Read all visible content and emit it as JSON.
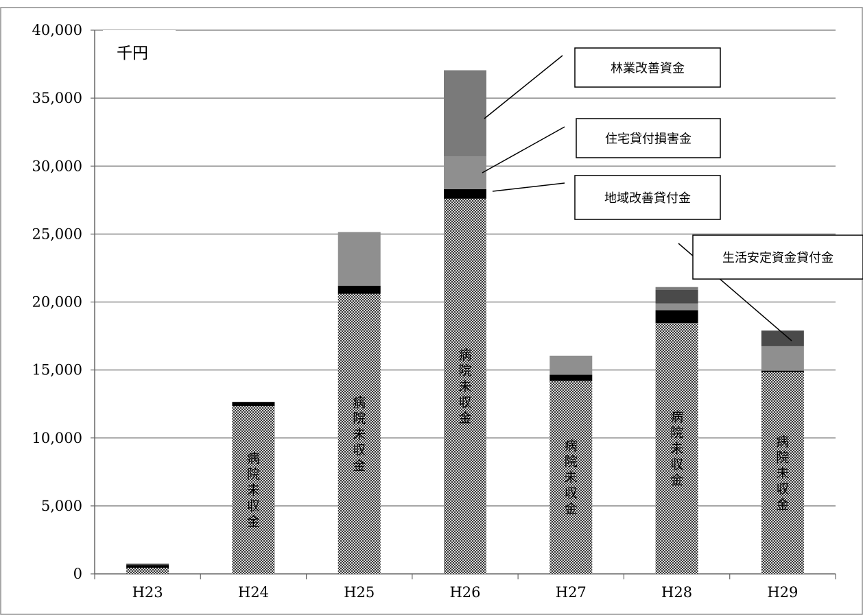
{
  "chart_data": {
    "type": "bar",
    "stacked": true,
    "unit_label": "千円",
    "categories": [
      "H23",
      "H24",
      "H25",
      "H26",
      "H27",
      "H28",
      "H29"
    ],
    "ylim": [
      0,
      40000
    ],
    "yticks": [
      0,
      5000,
      10000,
      15000,
      20000,
      25000,
      30000,
      35000,
      40000
    ],
    "ytick_labels": [
      "0",
      "5,000",
      "10,000",
      "15,000",
      "20,000",
      "25,000",
      "30,000",
      "35,000",
      "40,000"
    ],
    "grid": true,
    "series": [
      {
        "key": "hospital",
        "values": [
          450,
          12350,
          20600,
          27600,
          14200,
          18450,
          14850
        ],
        "fill": "checker"
      },
      {
        "key": "chiiki",
        "name": "地域改善貸付金",
        "values": [
          200,
          300,
          600,
          700,
          450,
          950,
          100
        ],
        "fill": "#000000"
      },
      {
        "key": "jutaku",
        "name": "住宅貸付損害金",
        "values": [
          0,
          0,
          3950,
          2400,
          1400,
          500,
          1800
        ],
        "fill": "#8f8f8f"
      },
      {
        "key": "seikatsu",
        "name": "生活安定資金貸付金",
        "values": [
          100,
          0,
          0,
          0,
          0,
          1000,
          1150
        ],
        "fill": "#4a4a4a"
      },
      {
        "key": "ringyo",
        "name": "林業改善資金",
        "values": [
          0,
          0,
          0,
          6350,
          0,
          200,
          0
        ],
        "fill": "#7a7a7a"
      }
    ],
    "bar_labels": {
      "text": "病院未収金",
      "categories": [
        "H24",
        "H25",
        "H26",
        "H27",
        "H28",
        "H29"
      ]
    },
    "callouts": [
      {
        "text": "林業改善資金",
        "series": "ringyo",
        "category": "H26"
      },
      {
        "text": "住宅貸付損害金",
        "series": "jutaku",
        "category": "H26"
      },
      {
        "text": "地域改善貸付金",
        "series": "chiiki",
        "category": "H26"
      },
      {
        "text": "生活安定資金貸付金",
        "series": "seikatsu",
        "category": "H29"
      }
    ]
  }
}
